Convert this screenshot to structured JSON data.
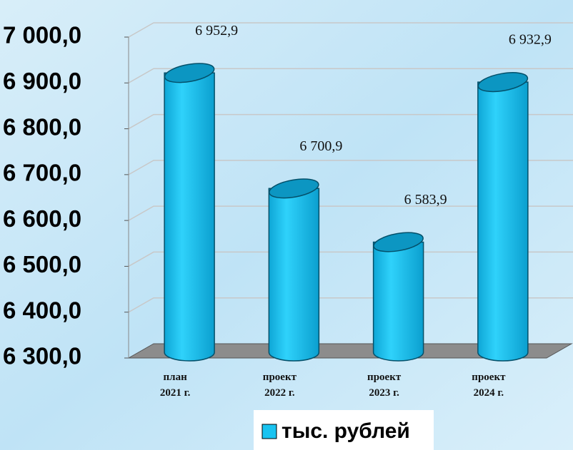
{
  "chart_data": {
    "type": "bar",
    "categories": [
      "план\n2021 г.",
      "проект\n2022 г.",
      "проект\n2023 г.",
      "проект\n2024 г."
    ],
    "values": [
      6952.9,
      6700.9,
      6583.9,
      6932.9
    ],
    "value_labels": [
      "6 952,9",
      "6 700,9",
      "6 583,9",
      "6 932,9"
    ],
    "color": "#19c3f0",
    "ylim": [
      6300,
      7000
    ],
    "yticks": [
      {
        "value": 6300,
        "label": "6 300,0"
      },
      {
        "value": 6400,
        "label": "6 400,0"
      },
      {
        "value": 6500,
        "label": "6 500,0"
      },
      {
        "value": 6600,
        "label": "6 600,0"
      },
      {
        "value": 6700,
        "label": "6 700,0"
      },
      {
        "value": 6800,
        "label": "6 800,0"
      },
      {
        "value": 6900,
        "label": "6 900,0"
      },
      {
        "value": 7000,
        "label": "7 000,0"
      }
    ],
    "grid": true,
    "legend": {
      "position": "bottom",
      "label": "тыс. рублей"
    }
  }
}
